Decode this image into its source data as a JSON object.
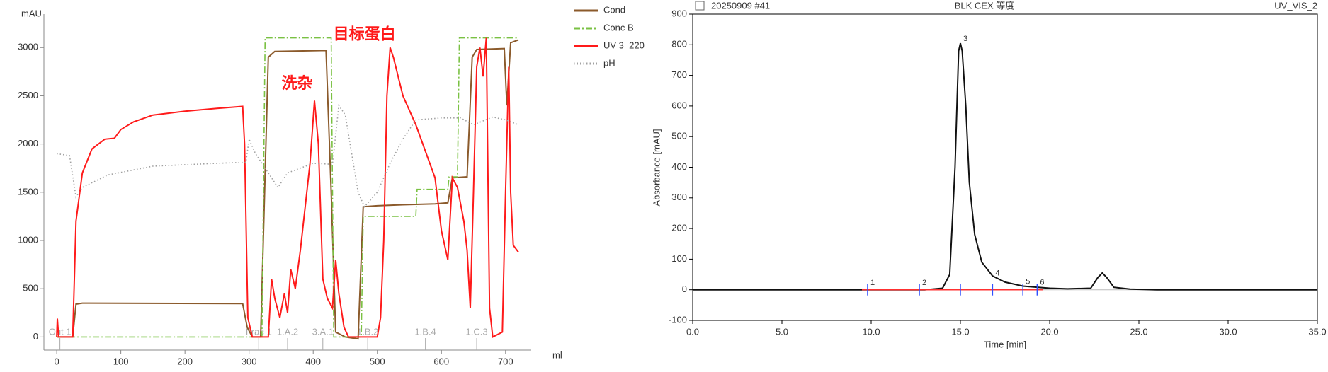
{
  "chart_data": [
    {
      "type": "line",
      "y_label": "mAU",
      "x_label": "ml",
      "xlim": [
        -20,
        740
      ],
      "ylim": [
        -100,
        3200
      ],
      "xticks": [
        0,
        100,
        200,
        300,
        400,
        500,
        600,
        700
      ],
      "yticks": [
        0,
        500,
        1000,
        1500,
        2000,
        2500,
        3000
      ],
      "legend": "right",
      "series": [
        {
          "name": "Cond",
          "color": "#8b5a2b",
          "dash": "solid",
          "x": [
            0,
            25,
            30,
            40,
            290,
            297,
            305,
            318,
            330,
            340,
            420,
            428,
            435,
            450,
            470,
            478,
            500,
            540,
            590,
            610,
            617,
            640,
            648,
            655,
            698,
            702,
            708,
            720
          ],
          "values": [
            0,
            0,
            340,
            350,
            345,
            100,
            0,
            0,
            2900,
            2960,
            2970,
            1500,
            50,
            0,
            -20,
            1350,
            1360,
            1370,
            1380,
            1390,
            1650,
            1660,
            2900,
            2980,
            2990,
            2400,
            3050,
            3080
          ]
        },
        {
          "name": "Conc B",
          "color": "#7ac143",
          "dash": "dashdot",
          "x": [
            0,
            320,
            325,
            428,
            432,
            475,
            478,
            560,
            562,
            610,
            612,
            625,
            628,
            720
          ],
          "values": [
            0,
            0,
            3100,
            3100,
            0,
            0,
            1250,
            1250,
            1530,
            1530,
            1660,
            1660,
            3100,
            3100
          ]
        },
        {
          "name": "UV 3_220",
          "color": "#ff1a1a",
          "dash": "solid",
          "x": [
            0,
            1,
            3,
            25,
            30,
            40,
            55,
            75,
            90,
            100,
            120,
            150,
            200,
            250,
            290,
            293,
            298,
            305,
            330,
            335,
            340,
            348,
            355,
            360,
            365,
            372,
            380,
            395,
            402,
            408,
            415,
            422,
            430,
            435,
            440,
            448,
            455,
            500,
            505,
            510,
            515,
            520,
            525,
            540,
            560,
            590,
            600,
            610,
            617,
            625,
            635,
            640,
            645,
            650,
            655,
            660,
            665,
            670,
            672,
            675,
            680,
            695,
            700,
            705,
            708,
            712,
            720
          ],
          "values": [
            0,
            190,
            0,
            0,
            1200,
            1700,
            1950,
            2050,
            2060,
            2150,
            2230,
            2300,
            2340,
            2370,
            2390,
            2000,
            200,
            0,
            0,
            600,
            400,
            200,
            450,
            250,
            700,
            500,
            900,
            1800,
            2450,
            2000,
            600,
            400,
            300,
            800,
            450,
            100,
            0,
            0,
            200,
            1000,
            2500,
            3000,
            2900,
            2500,
            2200,
            1650,
            1100,
            800,
            1650,
            1550,
            1200,
            900,
            300,
            1500,
            2800,
            3000,
            2700,
            3100,
            2000,
            300,
            0,
            50,
            1500,
            2800,
            1500,
            950,
            880
          ]
        },
        {
          "name": "pH",
          "color": "#a0a0a0",
          "dash": "dotted",
          "x": [
            0,
            20,
            30,
            40,
            80,
            150,
            250,
            295,
            300,
            310,
            320,
            330,
            345,
            360,
            400,
            430,
            440,
            450,
            470,
            480,
            500,
            520,
            540,
            560,
            600,
            630,
            650,
            680,
            700,
            720
          ],
          "values": [
            1900,
            1880,
            1450,
            1550,
            1680,
            1770,
            1800,
            1810,
            2050,
            1900,
            1800,
            1700,
            1550,
            1700,
            1800,
            1790,
            2400,
            2300,
            1500,
            1350,
            1500,
            1800,
            2050,
            2250,
            2270,
            2270,
            2200,
            2280,
            2250,
            2200
          ]
        }
      ],
      "annotations": [
        {
          "text": "洗杂",
          "x": 375,
          "y": 2620,
          "color": "#ff1a1a"
        },
        {
          "text": "目标蛋白",
          "x": 480,
          "y": 3130,
          "color": "#ff1a1a"
        }
      ],
      "fractions": [
        {
          "x": 5,
          "label": "Out 1"
        },
        {
          "x": 315,
          "label": "Frac 1"
        },
        {
          "x": 360,
          "label": "1.A.2"
        },
        {
          "x": 415,
          "label": "3.A.1"
        },
        {
          "x": 485,
          "label": "1.B.2"
        },
        {
          "x": 575,
          "label": "1.B.4"
        },
        {
          "x": 655,
          "label": "1.C.3"
        }
      ]
    },
    {
      "type": "line",
      "title": "BLK CEX 等度",
      "header_left": "20250909 #41",
      "header_right": "UV_VIS_2",
      "y_label": "Absorbance [mAU]",
      "x_label": "Time [min]",
      "xlim": [
        0,
        35
      ],
      "ylim": [
        -100,
        900
      ],
      "xticks": [
        {
          "value": 0,
          "label": "0.0"
        },
        {
          "value": 5,
          "label": "5.0"
        },
        {
          "value": 10,
          "label": "10.0"
        },
        {
          "value": 15,
          "label": "15.0"
        },
        {
          "value": 20,
          "label": "20.0"
        },
        {
          "value": 25,
          "label": "25.0"
        },
        {
          "value": 30,
          "label": "30.0"
        },
        {
          "value": 35,
          "label": "35.0"
        }
      ],
      "yticks": [
        -100,
        0,
        100,
        200,
        300,
        400,
        500,
        600,
        700,
        800,
        900
      ],
      "series": [
        {
          "color": "#111111",
          "dash": "solid",
          "x": [
            0,
            9,
            13,
            14,
            14.4,
            14.7,
            14.9,
            15.0,
            15.1,
            15.3,
            15.5,
            15.8,
            16.2,
            16.8,
            17.5,
            18.5,
            20,
            21,
            22.3,
            22.7,
            22.95,
            23.2,
            23.6,
            24.5,
            26,
            35
          ],
          "values": [
            0,
            0,
            0,
            5,
            50,
            400,
            780,
            805,
            780,
            600,
            350,
            180,
            90,
            45,
            25,
            12,
            5,
            3,
            5,
            40,
            55,
            40,
            8,
            2,
            0,
            0
          ]
        }
      ],
      "peaks": {
        "x": [
          9.8,
          12.7,
          15.0,
          16.8,
          18.5,
          19.3
        ],
        "values": [
          8,
          8,
          805,
          40,
          12,
          10
        ],
        "labels": [
          "1",
          "2",
          "3",
          "4",
          "5",
          "6"
        ]
      }
    }
  ]
}
